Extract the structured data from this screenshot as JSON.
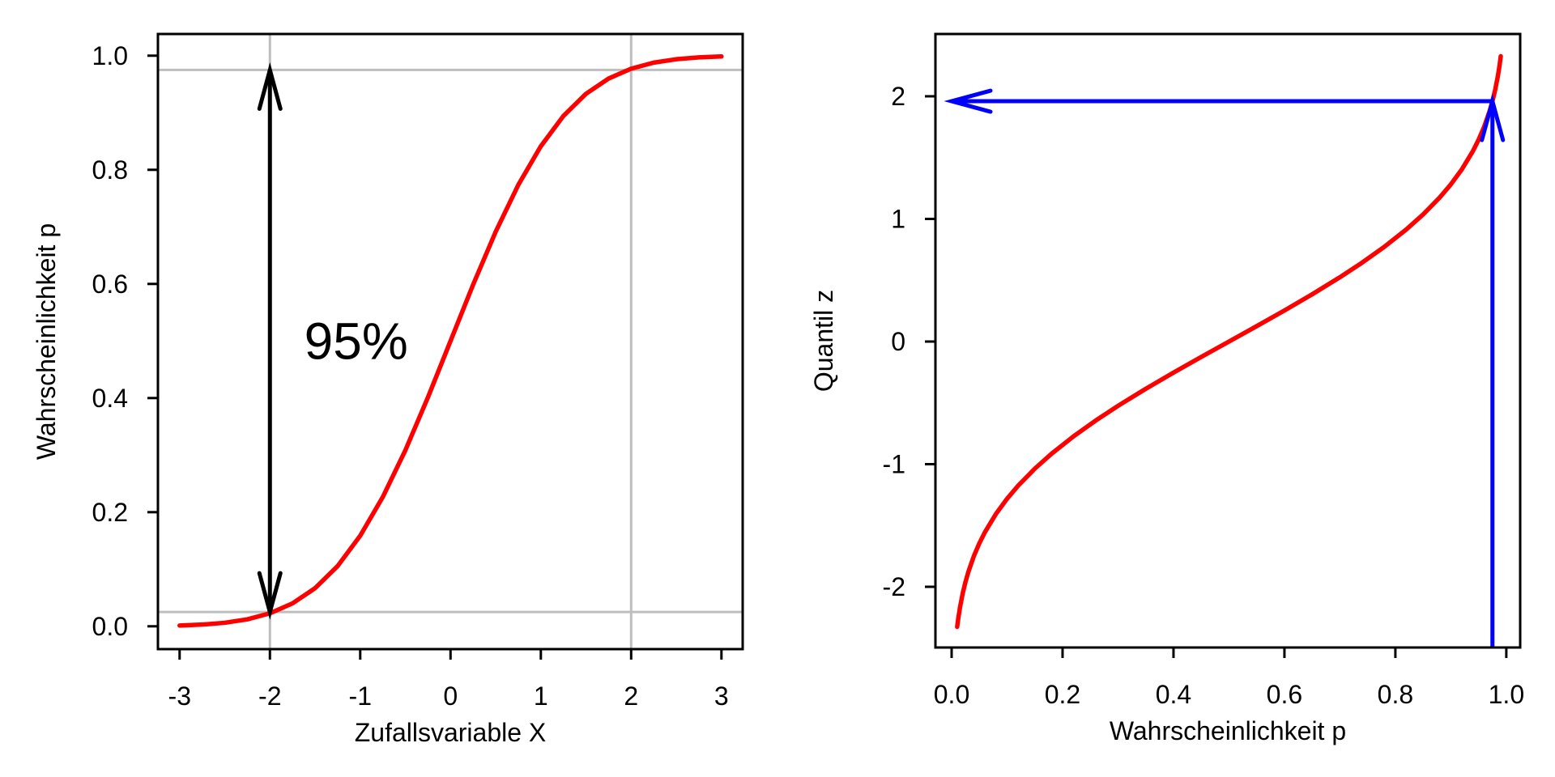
{
  "colors": {
    "background": "#FFFFFF",
    "curve_red": "#FF0000",
    "arrow_blue": "#0000FF",
    "arrow_black": "#000000",
    "grid_gray": "#BEBEBE",
    "axis_black": "#000000"
  },
  "chart_data": [
    {
      "type": "line",
      "title": "",
      "xlabel": "Zufallsvariable X",
      "ylabel": "Wahrscheinlichkeit p",
      "xlim": [
        -3.24,
        3.235
      ],
      "ylim": [
        -0.04,
        1.038
      ],
      "grid": {
        "vlines": [
          -2,
          2
        ],
        "hlines": [
          0.025,
          0.975
        ],
        "color": "#BEBEBE"
      },
      "xticks": {
        "values": [
          -3,
          -2,
          -1,
          0,
          1,
          2,
          3
        ],
        "labels": [
          "-3",
          "-2",
          "-1",
          "0",
          "1",
          "2",
          "3"
        ]
      },
      "yticks": {
        "values": [
          0,
          0.2,
          0.4,
          0.6,
          0.8,
          1
        ],
        "labels": [
          "0.0",
          "0.2",
          "0.4",
          "0.6",
          "0.8",
          "1.0"
        ]
      },
      "series": [
        {
          "color": "#FF0000",
          "x": [
            -3,
            -2.75,
            -2.5,
            -2.25,
            -2,
            -1.75,
            -1.5,
            -1.25,
            -1,
            -0.75,
            -0.5,
            -0.25,
            0,
            0.25,
            0.5,
            0.75,
            1,
            1.25,
            1.5,
            1.75,
            2,
            2.25,
            2.5,
            2.75,
            3
          ],
          "y": [
            0.0013,
            0.003,
            0.0062,
            0.0122,
            0.0228,
            0.0401,
            0.0668,
            0.1056,
            0.1587,
            0.2266,
            0.3085,
            0.4013,
            0.5,
            0.5987,
            0.6915,
            0.7734,
            0.8413,
            0.8944,
            0.9332,
            0.9599,
            0.9772,
            0.9878,
            0.9938,
            0.997,
            0.9987
          ]
        }
      ],
      "annotations": {
        "double_arrow": {
          "x": -2,
          "y1": 0.025,
          "y2": 0.975,
          "color": "#000000"
        },
        "label": {
          "text": "95%",
          "x": -1.62,
          "y": 0.5,
          "color": "#000000"
        }
      }
    },
    {
      "type": "line",
      "title": "",
      "xlabel": "Wahrscheinlichkeit p",
      "ylabel": "Quantil z",
      "xlim": [
        -0.0292,
        1.025
      ],
      "ylim": [
        -2.495,
        2.508
      ],
      "xticks": {
        "values": [
          0,
          0.2,
          0.4,
          0.6,
          0.8,
          1
        ],
        "labels": [
          "0.0",
          "0.2",
          "0.4",
          "0.6",
          "0.8",
          "1.0"
        ]
      },
      "yticks": {
        "values": [
          -2,
          -1,
          0,
          1,
          2
        ],
        "labels": [
          "-2",
          "-1",
          "0",
          "1",
          "2"
        ]
      },
      "series": [
        {
          "color": "#FF0000",
          "x": [
            0.01,
            0.012,
            0.015,
            0.02,
            0.025,
            0.03,
            0.04,
            0.05,
            0.06,
            0.08,
            0.1,
            0.12,
            0.15,
            0.18,
            0.22,
            0.26,
            0.3,
            0.35,
            0.4,
            0.45,
            0.5,
            0.55,
            0.6,
            0.65,
            0.7,
            0.74,
            0.78,
            0.82,
            0.85,
            0.88,
            0.9,
            0.92,
            0.94,
            0.95,
            0.96,
            0.97,
            0.975,
            0.98,
            0.985,
            0.988,
            0.99
          ],
          "y": [
            -2.3263,
            -2.2571,
            -2.1701,
            -2.0537,
            -1.96,
            -1.8808,
            -1.7507,
            -1.6449,
            -1.5548,
            -1.4051,
            -1.2816,
            -1.175,
            -1.0364,
            -0.9154,
            -0.7722,
            -0.6433,
            -0.5244,
            -0.3853,
            -0.2533,
            -0.1257,
            0,
            0.1257,
            0.2533,
            0.3853,
            0.5244,
            0.6433,
            0.7722,
            0.9154,
            1.0364,
            1.175,
            1.2816,
            1.4051,
            1.5548,
            1.6449,
            1.7507,
            1.8808,
            1.96,
            2.0537,
            2.1701,
            2.2571,
            2.3263
          ]
        }
      ],
      "annotations": {
        "arrows": [
          {
            "from": [
              0.975,
              -2.495
            ],
            "to": [
              0.975,
              1.96
            ],
            "color": "#0000FF"
          },
          {
            "from": [
              0.975,
              1.96
            ],
            "to": [
              0,
              1.96
            ],
            "color": "#0000FF"
          }
        ]
      }
    }
  ]
}
